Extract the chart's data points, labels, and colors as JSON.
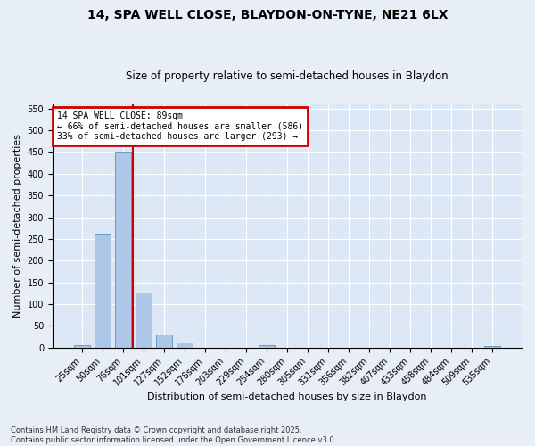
{
  "title1": "14, SPA WELL CLOSE, BLAYDON-ON-TYNE, NE21 6LX",
  "title2": "Size of property relative to semi-detached houses in Blaydon",
  "xlabel": "Distribution of semi-detached houses by size in Blaydon",
  "ylabel": "Number of semi-detached properties",
  "categories": [
    "25sqm",
    "50sqm",
    "76sqm",
    "101sqm",
    "127sqm",
    "152sqm",
    "178sqm",
    "203sqm",
    "229sqm",
    "254sqm",
    "280sqm",
    "305sqm",
    "331sqm",
    "356sqm",
    "382sqm",
    "407sqm",
    "433sqm",
    "458sqm",
    "484sqm",
    "509sqm",
    "535sqm"
  ],
  "values": [
    5,
    263,
    450,
    126,
    31,
    11,
    0,
    0,
    0,
    5,
    0,
    0,
    0,
    0,
    0,
    0,
    0,
    0,
    0,
    0,
    3
  ],
  "bar_color": "#aec6e8",
  "bar_edge_color": "#5a8fc2",
  "vline_color": "#cc0000",
  "vline_index": 2.5,
  "annotation_title": "14 SPA WELL CLOSE: 89sqm",
  "annotation_line1": "← 66% of semi-detached houses are smaller (586)",
  "annotation_line2": "33% of semi-detached houses are larger (293) →",
  "annotation_box_color": "#cc0000",
  "ylim": [
    0,
    560
  ],
  "yticks": [
    0,
    50,
    100,
    150,
    200,
    250,
    300,
    350,
    400,
    450,
    500,
    550
  ],
  "footer1": "Contains HM Land Registry data © Crown copyright and database right 2025.",
  "footer2": "Contains public sector information licensed under the Open Government Licence v3.0.",
  "bg_color": "#e8eef5",
  "plot_bg_color": "#dce8f5",
  "title1_fontsize": 10,
  "title2_fontsize": 8.5,
  "xlabel_fontsize": 8,
  "ylabel_fontsize": 8,
  "tick_fontsize": 7,
  "annot_fontsize": 7,
  "footer_fontsize": 6
}
